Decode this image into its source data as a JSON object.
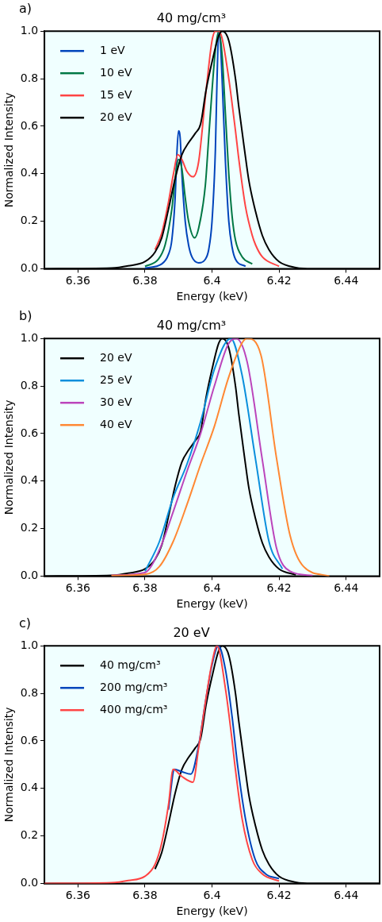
{
  "chart_data": [
    {
      "type": "line",
      "title": "40 mg/cm³",
      "xlabel": "Energy (keV)",
      "ylabel": "Normalized Intensity",
      "annotations": [
        "a)"
      ],
      "xlim": [
        6.35,
        6.45
      ],
      "xticks": [
        6.36,
        6.38,
        6.4,
        6.42,
        6.44
      ],
      "ylim": [
        0,
        1
      ],
      "yticks": [
        {
          "value": 0,
          "label": "0.0"
        },
        {
          "value": 0.2,
          "label": "0.2"
        },
        {
          "value": 0.4,
          "label": "0.4"
        },
        {
          "value": 0.6,
          "label": "0.6"
        },
        {
          "value": 0.8,
          "label": "0.8"
        },
        {
          "value": 1,
          "label": "1.0"
        }
      ],
      "grid": false,
      "legend": "top left",
      "marker": "none",
      "line_style": "solid",
      "series": [
        {
          "name": "1 eV",
          "color": "#0044bb",
          "x": [
            6.38,
            6.385,
            6.387,
            6.388,
            6.389,
            6.3895,
            6.39,
            6.3905,
            6.391,
            6.392,
            6.393,
            6.394,
            6.396,
            6.398,
            6.399,
            6.4,
            6.401,
            6.4015,
            6.402,
            6.4025,
            6.403,
            6.404,
            6.405,
            6.406,
            6.407,
            6.41
          ],
          "values": [
            0.003,
            0.02,
            0.06,
            0.12,
            0.3,
            0.48,
            0.58,
            0.55,
            0.4,
            0.2,
            0.1,
            0.05,
            0.025,
            0.04,
            0.08,
            0.2,
            0.5,
            0.8,
            1,
            0.95,
            0.8,
            0.45,
            0.2,
            0.09,
            0.04,
            0.01
          ]
        },
        {
          "name": "10 eV",
          "color": "#007744",
          "x": [
            6.38,
            6.384,
            6.386,
            6.388,
            6.389,
            6.39,
            6.391,
            6.392,
            6.393,
            6.3948,
            6.396,
            6.398,
            6.399,
            6.4,
            6.401,
            6.402,
            6.403,
            6.404,
            6.405,
            6.406,
            6.407,
            6.409,
            6.412
          ],
          "values": [
            0.01,
            0.04,
            0.1,
            0.25,
            0.38,
            0.46,
            0.42,
            0.3,
            0.2,
            0.13,
            0.17,
            0.35,
            0.55,
            0.75,
            0.92,
            1,
            0.9,
            0.65,
            0.4,
            0.22,
            0.12,
            0.05,
            0.02
          ]
        },
        {
          "name": "15 eV",
          "color": "#ff4444",
          "x": [
            6.383,
            6.385,
            6.387,
            6.3885,
            6.3898,
            6.391,
            6.3925,
            6.3943,
            6.396,
            6.398,
            6.399,
            6.4,
            6.401,
            6.402,
            6.403,
            6.405,
            6.407,
            6.408,
            6.41,
            6.412,
            6.413,
            6.415,
            6.42
          ],
          "values": [
            0.08,
            0.15,
            0.28,
            0.4,
            0.48,
            0.46,
            0.41,
            0.387,
            0.45,
            0.72,
            0.85,
            0.96,
            1,
            1,
            0.97,
            0.8,
            0.58,
            0.46,
            0.26,
            0.14,
            0.1,
            0.05,
            0.01
          ]
        },
        {
          "name": "20 eV",
          "color": "#000000",
          "x": [
            6.35,
            6.37,
            6.375,
            6.38,
            6.383,
            6.385,
            6.387,
            6.389,
            6.391,
            6.393,
            6.395,
            6.3966,
            6.3982,
            6.4,
            6.402,
            6.4031,
            6.405,
            6.407,
            6.408,
            6.4097,
            6.411,
            6.413,
            6.415,
            6.417,
            6.42,
            6.425,
            6.43,
            6.45
          ],
          "values": [
            0,
            0.003,
            0.012,
            0.03,
            0.07,
            0.13,
            0.25,
            0.38,
            0.48,
            0.53,
            0.57,
            0.61,
            0.75,
            0.87,
            0.98,
            1,
            0.96,
            0.8,
            0.68,
            0.5,
            0.37,
            0.24,
            0.14,
            0.08,
            0.03,
            0.005,
            0,
            0
          ]
        }
      ]
    },
    {
      "type": "line",
      "title": "40 mg/cm³",
      "xlabel": "Energy (keV)",
      "ylabel": "Normalized Intensity",
      "annotations": [
        "b)"
      ],
      "xlim": [
        6.35,
        6.45
      ],
      "xticks": [
        6.36,
        6.38,
        6.4,
        6.42,
        6.44
      ],
      "ylim": [
        0,
        1
      ],
      "yticks": [
        {
          "value": 0,
          "label": "0.0"
        },
        {
          "value": 0.2,
          "label": "0.2"
        },
        {
          "value": 0.4,
          "label": "0.4"
        },
        {
          "value": 0.6,
          "label": "0.6"
        },
        {
          "value": 0.8,
          "label": "0.8"
        },
        {
          "value": 1,
          "label": "1.0"
        }
      ],
      "grid": false,
      "legend": "top left",
      "marker": "none",
      "line_style": "solid",
      "series": [
        {
          "name": "20 eV",
          "color": "#000000",
          "x": [
            6.35,
            6.37,
            6.375,
            6.38,
            6.383,
            6.385,
            6.387,
            6.389,
            6.391,
            6.393,
            6.395,
            6.3966,
            6.3982,
            6.4,
            6.402,
            6.4031,
            6.405,
            6.407,
            6.408,
            6.4097,
            6.411,
            6.413,
            6.415,
            6.417,
            6.42,
            6.425
          ],
          "values": [
            0,
            0.003,
            0.012,
            0.03,
            0.07,
            0.13,
            0.25,
            0.38,
            0.48,
            0.53,
            0.57,
            0.61,
            0.75,
            0.87,
            0.98,
            1,
            0.96,
            0.8,
            0.68,
            0.5,
            0.37,
            0.24,
            0.14,
            0.08,
            0.03,
            0.005
          ]
        },
        {
          "name": "25 eV",
          "color": "#0a8fdc",
          "x": [
            6.38,
            6.3843,
            6.3884,
            6.3925,
            6.3966,
            6.4007,
            6.4056,
            6.4089,
            6.413,
            6.417,
            6.421
          ],
          "values": [
            0.02,
            0.145,
            0.33,
            0.47,
            0.65,
            0.87,
            1,
            0.85,
            0.49,
            0.145,
            0.03
          ]
        },
        {
          "name": "30 eV",
          "color": "#bb44bb",
          "x": [
            6.37,
            6.38,
            6.3843,
            6.3884,
            6.3925,
            6.3966,
            6.4007,
            6.4048,
            6.4072,
            6.4105,
            6.415,
            6.4192,
            6.4233,
            6.43
          ],
          "values": [
            0.003,
            0.015,
            0.11,
            0.27,
            0.44,
            0.6,
            0.8,
            0.975,
            1,
            0.9,
            0.49,
            0.12,
            0.02,
            0.002
          ]
        },
        {
          "name": "40 eV",
          "color": "#ff8833",
          "x": [
            6.37,
            6.38,
            6.3843,
            6.3884,
            6.3925,
            6.3966,
            6.4007,
            6.4048,
            6.4089,
            6.4105,
            6.4146,
            6.4192,
            6.4233,
            6.4273,
            6.435
          ],
          "values": [
            0.002,
            0.007,
            0.04,
            0.145,
            0.3,
            0.47,
            0.63,
            0.83,
            0.98,
            1,
            0.93,
            0.5,
            0.17,
            0.04,
            0
          ]
        }
      ]
    },
    {
      "type": "line",
      "title": "20 eV",
      "xlabel": "Energy (keV)",
      "ylabel": "Normalized Intensity",
      "annotations": [
        "c)"
      ],
      "xlim": [
        6.35,
        6.45
      ],
      "xticks": [
        6.36,
        6.38,
        6.4,
        6.42,
        6.44
      ],
      "ylim": [
        0,
        1
      ],
      "yticks": [
        {
          "value": 0,
          "label": "0.0"
        },
        {
          "value": 0.2,
          "label": "0.2"
        },
        {
          "value": 0.4,
          "label": "0.4"
        },
        {
          "value": 0.6,
          "label": "0.6"
        },
        {
          "value": 0.8,
          "label": "0.8"
        },
        {
          "value": 1,
          "label": "1.0"
        }
      ],
      "grid": false,
      "legend": "top left",
      "marker": "none",
      "line_style": "solid",
      "series": [
        {
          "name": "40 mg/cm³",
          "color": "#000000",
          "x": [
            6.383,
            6.385,
            6.387,
            6.389,
            6.391,
            6.393,
            6.395,
            6.3966,
            6.3982,
            6.4,
            6.402,
            6.4031,
            6.405,
            6.407,
            6.408,
            6.4097,
            6.411,
            6.413,
            6.415,
            6.417,
            6.42,
            6.425,
            6.43,
            6.45
          ],
          "values": [
            0.06,
            0.13,
            0.25,
            0.38,
            0.48,
            0.53,
            0.57,
            0.61,
            0.75,
            0.87,
            0.98,
            1,
            0.96,
            0.8,
            0.68,
            0.5,
            0.37,
            0.24,
            0.14,
            0.08,
            0.03,
            0.005,
            0,
            0
          ]
        },
        {
          "name": "200 mg/cm³",
          "color": "#0044bb",
          "x": [
            6.387,
            6.3888,
            6.391,
            6.3937,
            6.396,
            6.398,
            6.4,
            6.4019,
            6.404,
            6.406,
            6.4076,
            6.41,
            6.4129,
            6.416,
            6.42
          ],
          "values": [
            0.31,
            0.48,
            0.47,
            0.46,
            0.58,
            0.76,
            0.92,
            1,
            0.9,
            0.7,
            0.5,
            0.27,
            0.1,
            0.04,
            0.02
          ]
        },
        {
          "name": "400 mg/cm³",
          "color": "#ff4444",
          "x": [
            6.35,
            6.37,
            6.375,
            6.38,
            6.383,
            6.385,
            6.387,
            6.3884,
            6.391,
            6.3943,
            6.396,
            6.398,
            6.4,
            6.4015,
            6.404,
            6.406,
            6.4068,
            6.409,
            6.412,
            6.415,
            6.42
          ],
          "values": [
            0,
            0.003,
            0.012,
            0.03,
            0.08,
            0.17,
            0.33,
            0.48,
            0.45,
            0.426,
            0.57,
            0.76,
            0.93,
            1,
            0.82,
            0.6,
            0.5,
            0.27,
            0.1,
            0.04,
            0.01
          ]
        }
      ]
    }
  ]
}
